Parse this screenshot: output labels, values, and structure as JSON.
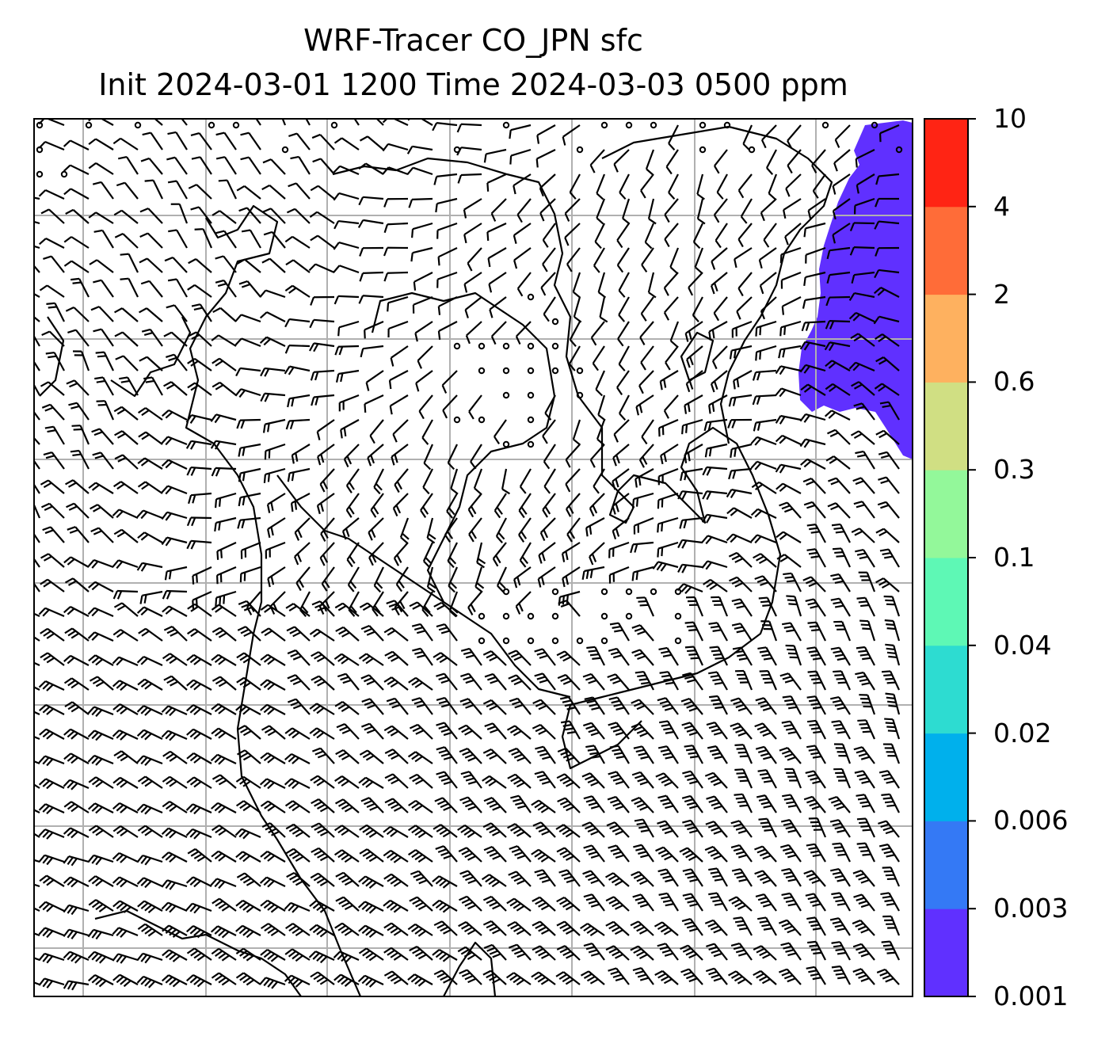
{
  "title": {
    "line1": "WRF-Tracer CO_JPN sfc",
    "line2": "Init 2024-03-01 1200 Time 2024-03-03 0500 ppm"
  },
  "colorbar": {
    "levels": [
      {
        "label": "0.001",
        "value": 0.001,
        "color": "#6030ff"
      },
      {
        "label": "0.003",
        "value": 0.003,
        "color": "#3479f5"
      },
      {
        "label": "0.006",
        "value": 0.006,
        "color": "#00b0ec"
      },
      {
        "label": "0.02",
        "value": 0.02,
        "color": "#2ddcd1"
      },
      {
        "label": "0.04",
        "value": 0.04,
        "color": "#5ef8b5"
      },
      {
        "label": "0.1",
        "value": 0.1,
        "color": "#93f89a"
      },
      {
        "label": "0.3",
        "value": 0.3,
        "color": "#d0df83"
      },
      {
        "label": "0.6",
        "value": 0.6,
        "color": "#feb15f"
      },
      {
        "label": "2",
        "value": 2,
        "color": "#ff6c38"
      },
      {
        "label": "4",
        "value": 4,
        "color": "#ff2414"
      },
      {
        "label": "10",
        "value": 10
      }
    ]
  },
  "map": {
    "plume_color": "#6030ff",
    "plume_level": "0.001-0.003",
    "wind_barbs": "black",
    "coastline": "black",
    "gridlines": "#b0b0b0"
  }
}
